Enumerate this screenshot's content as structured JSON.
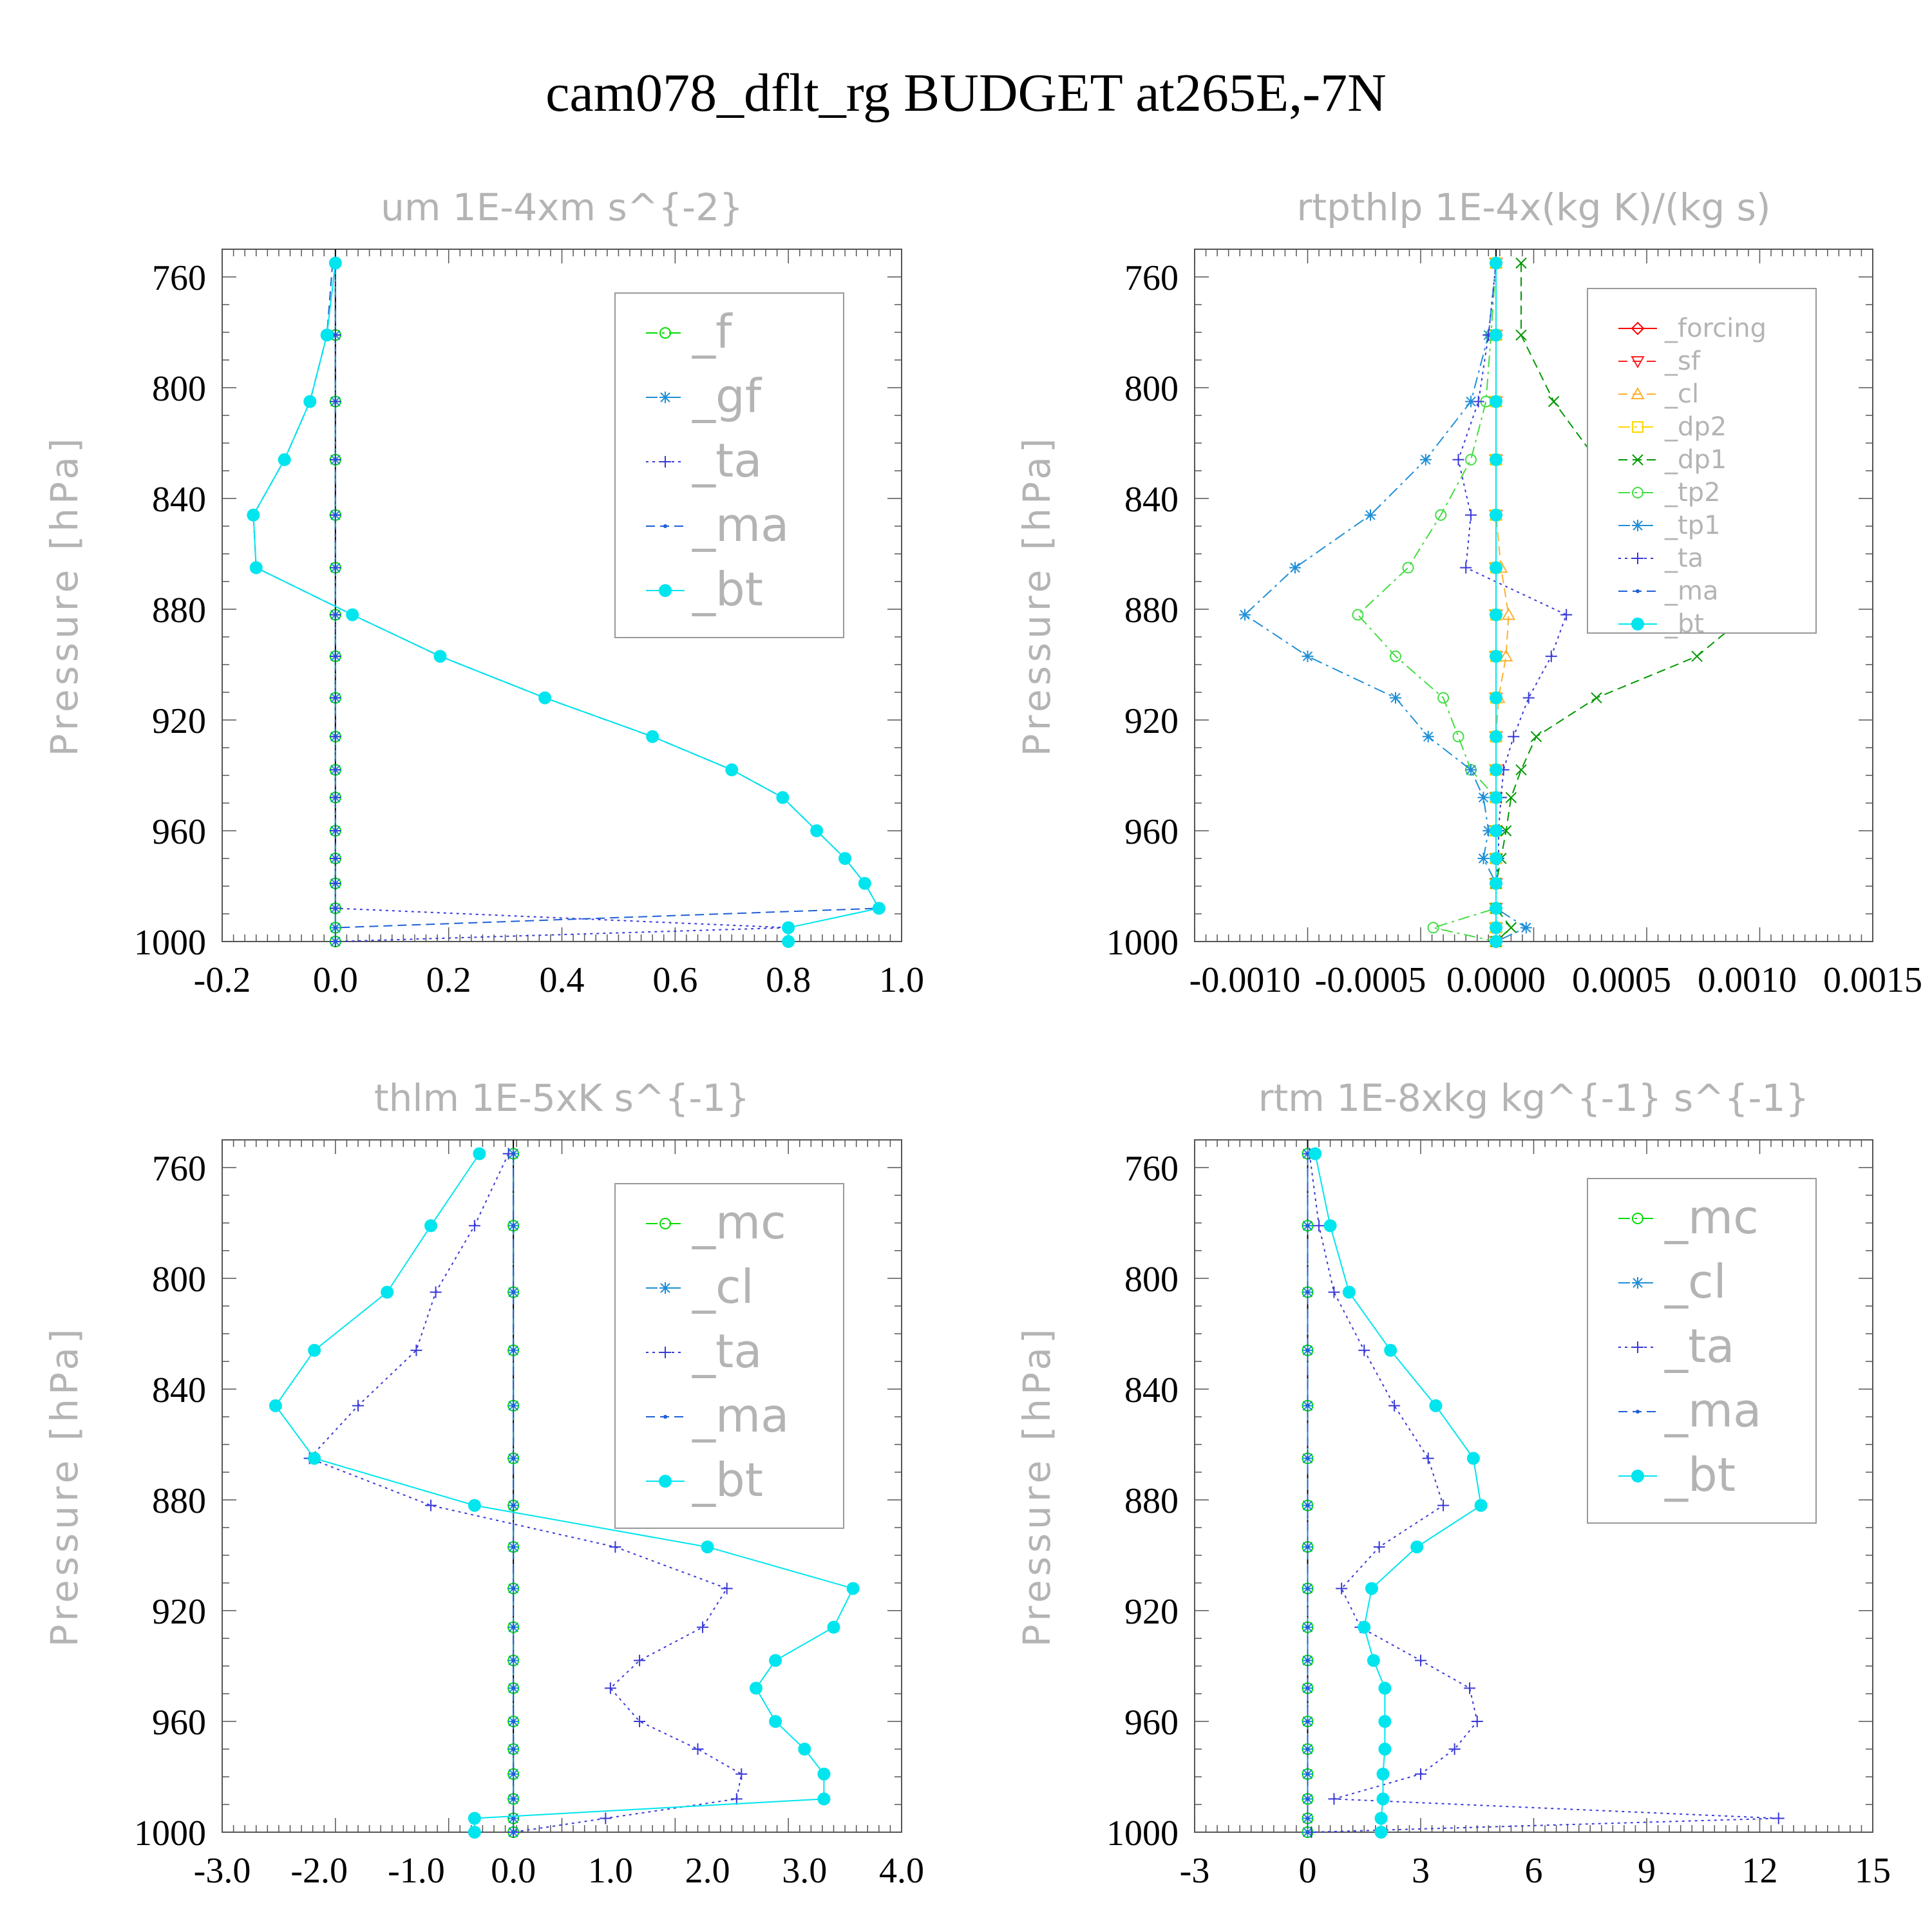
{
  "figure_title": "cam078_dflt_rg  BUDGET at265E,-7N",
  "chart_data": [
    {
      "type": "line",
      "title": "um   1E-4xm s^{-2}",
      "ylabel": "Pressure [hPa]",
      "xlim": [
        -0.2,
        1.0
      ],
      "ylim": [
        1000,
        750
      ],
      "xticks": [
        "-0.2",
        "0.0",
        "0.2",
        "0.4",
        "0.6",
        "0.8",
        "1.0"
      ],
      "yticks": [
        "760",
        "800",
        "840",
        "880",
        "920",
        "960",
        "1000"
      ],
      "legend_placement": "top-right",
      "levels": [
        755,
        781,
        805,
        826,
        846,
        865,
        882,
        897,
        912,
        926,
        938,
        948,
        960,
        970,
        979,
        988,
        995,
        1000
      ],
      "series": [
        {
          "name": "_f",
          "color": "#00dd00",
          "style": "dashdot",
          "marker": "circle",
          "values": [
            0,
            0,
            0,
            0,
            0,
            0,
            0,
            0,
            0,
            0,
            0,
            0,
            0,
            0,
            0,
            0,
            0,
            0
          ]
        },
        {
          "name": "_gf",
          "color": "#1f8fd6",
          "style": "dashdot",
          "marker": "asterisk",
          "values": [
            0,
            0,
            0,
            0,
            0,
            0,
            0,
            0,
            0,
            0,
            0,
            0,
            0,
            0,
            0,
            0,
            0,
            0
          ]
        },
        {
          "name": "_ta",
          "color": "#3a3ad8",
          "style": "dotted",
          "marker": "plus",
          "values": [
            0,
            0,
            0,
            0,
            0,
            0,
            0,
            0,
            0,
            0,
            0,
            0,
            0,
            0,
            0,
            0,
            0.8,
            0
          ]
        },
        {
          "name": "_ma",
          "color": "#1f5fd6",
          "style": "dashed",
          "marker": "dot",
          "values": [
            -0.005,
            -0.015,
            -0.045,
            -0.09,
            -0.145,
            -0.14,
            0.03,
            0.185,
            0.37,
            0.56,
            0.7,
            0.79,
            0.85,
            0.9,
            0.935,
            0.96,
            0,
            0
          ]
        },
        {
          "name": "_bt",
          "color": "#00e5ee",
          "style": "solid",
          "marker": "bigdot",
          "values": [
            0,
            -0.015,
            -0.045,
            -0.09,
            -0.145,
            -0.14,
            0.03,
            0.185,
            0.37,
            0.56,
            0.7,
            0.79,
            0.85,
            0.9,
            0.935,
            0.96,
            0.8,
            0.8
          ]
        }
      ]
    },
    {
      "type": "line",
      "title": "rtpthlp   1E-4x(kg K)/(kg s)",
      "ylabel": "Pressure [hPa]",
      "xlim": [
        -0.0012,
        0.0015
      ],
      "ylim": [
        1000,
        750
      ],
      "xticks": [
        "-0.0010",
        "-0.0005",
        "0.0000",
        "0.0005",
        "0.0010",
        "0.0015"
      ],
      "yticks": [
        "760",
        "800",
        "840",
        "880",
        "920",
        "960",
        "1000"
      ],
      "legend_placement": "top-right",
      "levels": [
        755,
        781,
        805,
        826,
        846,
        865,
        882,
        897,
        912,
        926,
        938,
        948,
        960,
        970,
        979,
        988,
        995,
        1000
      ],
      "series": [
        {
          "name": "_forcing",
          "color": "#ff0000",
          "style": "solid",
          "marker": "diamond",
          "values": [
            0,
            0,
            0,
            0,
            0,
            0,
            0,
            0,
            0,
            0,
            0,
            0,
            0,
            0,
            0,
            0,
            0,
            0
          ]
        },
        {
          "name": "_sf",
          "color": "#ff2020",
          "style": "dashed",
          "marker": "tri-down",
          "values": [
            0,
            0,
            0,
            0,
            0,
            0,
            0,
            0,
            0,
            0,
            0,
            0,
            0,
            0,
            0,
            0,
            0,
            0
          ]
        },
        {
          "name": "_cl",
          "color": "#ffb030",
          "style": "dashed",
          "marker": "tri-up",
          "values": [
            0,
            0,
            0,
            0,
            0,
            2e-05,
            5e-05,
            4e-05,
            1e-05,
            0,
            0,
            0,
            0,
            0,
            0,
            0,
            0,
            0
          ]
        },
        {
          "name": "_dp2",
          "color": "#ffd700",
          "style": "dashdot",
          "marker": "square",
          "values": [
            0,
            0,
            0,
            0,
            0,
            0,
            0,
            0,
            0,
            0,
            0,
            0,
            0,
            0,
            0,
            0,
            0,
            0
          ]
        },
        {
          "name": "_dp1",
          "color": "#009900",
          "style": "dashed",
          "marker": "x",
          "values": [
            0.0001,
            0.0001,
            0.00023,
            0.0004,
            0.00065,
            0.00092,
            0.001,
            0.0008,
            0.0004,
            0.00016,
            0.0001,
            6e-05,
            4e-05,
            2e-05,
            0,
            0,
            6e-05,
            0
          ]
        },
        {
          "name": "_tp2",
          "color": "#44dd44",
          "style": "dashdot",
          "marker": "circle",
          "values": [
            0,
            -2e-05,
            -4e-05,
            -0.0001,
            -0.00022,
            -0.00035,
            -0.00055,
            -0.0004,
            -0.00021,
            -0.00015,
            -0.0001,
            0,
            0,
            0,
            0,
            0,
            -0.00025,
            0
          ]
        },
        {
          "name": "_tp1",
          "color": "#1f8fd6",
          "style": "dashdot",
          "marker": "asterisk",
          "values": [
            0,
            -3e-05,
            -0.0001,
            -0.00028,
            -0.0005,
            -0.0008,
            -0.001,
            -0.00075,
            -0.0004,
            -0.00027,
            -0.0001,
            -5e-05,
            -3e-05,
            -5e-05,
            0,
            0,
            0.00012,
            0
          ]
        },
        {
          "name": "_ta",
          "color": "#3a3ad8",
          "style": "dotted",
          "marker": "plus",
          "values": [
            0,
            -3e-05,
            -7e-05,
            -0.00015,
            -0.0001,
            -0.00012,
            0.00028,
            0.00022,
            0.00013,
            7e-05,
            3e-05,
            2e-05,
            1e-05,
            1e-05,
            0,
            0,
            0,
            0
          ]
        },
        {
          "name": "_ma",
          "color": "#1f5fd6",
          "style": "dashed",
          "marker": "dot",
          "values": [
            0,
            0,
            0,
            0,
            0,
            0,
            0,
            0,
            0,
            0,
            0,
            0,
            0,
            0,
            0,
            0,
            0,
            0
          ]
        },
        {
          "name": "_bt",
          "color": "#00e5ee",
          "style": "solid",
          "marker": "bigdot",
          "values": [
            0,
            0,
            0,
            0,
            0,
            0,
            0,
            0,
            0,
            0,
            0,
            0,
            0,
            0,
            0,
            0,
            0,
            0
          ]
        }
      ]
    },
    {
      "type": "line",
      "title": "thlm   1E-5xK s^{-1}",
      "ylabel": "Pressure [hPa]",
      "xlim": [
        -3.0,
        4.0
      ],
      "ylim": [
        1000,
        750
      ],
      "xticks": [
        "-3.0",
        "-2.0",
        "-1.0",
        "0.0",
        "1.0",
        "2.0",
        "3.0",
        "4.0"
      ],
      "yticks": [
        "760",
        "800",
        "840",
        "880",
        "920",
        "960",
        "1000"
      ],
      "legend_placement": "top-right",
      "levels": [
        755,
        781,
        805,
        826,
        846,
        865,
        882,
        897,
        912,
        926,
        938,
        948,
        960,
        970,
        979,
        988,
        995,
        1000
      ],
      "series": [
        {
          "name": "_mc",
          "color": "#00dd00",
          "style": "dashdot",
          "marker": "circle",
          "values": [
            0,
            0,
            0,
            0,
            0,
            0,
            0,
            0,
            0,
            0,
            0,
            0,
            0,
            0,
            0,
            0,
            0,
            0
          ]
        },
        {
          "name": "_cl",
          "color": "#1f8fd6",
          "style": "dashdot",
          "marker": "asterisk",
          "values": [
            0,
            0,
            0,
            0,
            0,
            0,
            0,
            0,
            0,
            0,
            0,
            0,
            0,
            0,
            0,
            0,
            0,
            0
          ]
        },
        {
          "name": "_ta",
          "color": "#3a3ad8",
          "style": "dotted",
          "marker": "plus",
          "values": [
            -0.05,
            -0.4,
            -0.8,
            -1.0,
            -1.6,
            -2.1,
            -0.85,
            1.05,
            2.2,
            1.95,
            1.3,
            1.0,
            1.3,
            1.9,
            2.35,
            2.3,
            0.95,
            0
          ]
        },
        {
          "name": "_ma",
          "color": "#1f5fd6",
          "style": "dashed",
          "marker": "dot",
          "values": [
            0,
            0,
            0,
            0,
            0,
            0,
            0,
            0,
            0,
            0,
            0,
            0,
            0,
            0,
            0,
            0,
            0,
            0
          ]
        },
        {
          "name": "_bt",
          "color": "#00e5ee",
          "style": "solid",
          "marker": "bigdot",
          "values": [
            -0.35,
            -0.85,
            -1.3,
            -2.05,
            -2.45,
            -2.05,
            -0.4,
            2.0,
            3.5,
            3.3,
            2.7,
            2.5,
            2.7,
            3.0,
            3.2,
            3.2,
            -0.4,
            -0.4
          ]
        }
      ]
    },
    {
      "type": "line",
      "title": "rtm   1E-8xkg kg^{-1} s^{-1}",
      "ylabel": "Pressure [hPa]",
      "xlim": [
        -3,
        15
      ],
      "ylim": [
        1000,
        750
      ],
      "xticks": [
        "-3",
        "0",
        "3",
        "6",
        "9",
        "12",
        "15"
      ],
      "yticks": [
        "760",
        "800",
        "840",
        "880",
        "920",
        "960",
        "1000"
      ],
      "legend_placement": "top-right",
      "levels": [
        755,
        781,
        805,
        826,
        846,
        865,
        882,
        897,
        912,
        926,
        938,
        948,
        960,
        970,
        979,
        988,
        995,
        1000
      ],
      "series": [
        {
          "name": "_mc",
          "color": "#00dd00",
          "style": "dashdot",
          "marker": "circle",
          "values": [
            0,
            0,
            0,
            0,
            0,
            0,
            0,
            0,
            0,
            0,
            0,
            0,
            0,
            0,
            0,
            0,
            0,
            0
          ]
        },
        {
          "name": "_cl",
          "color": "#1f8fd6",
          "style": "dashdot",
          "marker": "asterisk",
          "values": [
            0,
            0,
            0,
            0,
            0,
            0,
            0,
            0,
            0,
            0,
            0,
            0,
            0,
            0,
            0,
            0,
            0,
            0
          ]
        },
        {
          "name": "_ta",
          "color": "#3a3ad8",
          "style": "dotted",
          "marker": "plus",
          "values": [
            0.05,
            0.3,
            0.7,
            1.5,
            2.3,
            3.2,
            3.6,
            1.9,
            0.9,
            1.4,
            3.0,
            4.3,
            4.5,
            3.9,
            3.0,
            0.7,
            12.5,
            0.1
          ]
        },
        {
          "name": "_ma",
          "color": "#1f5fd6",
          "style": "dashed",
          "marker": "dot",
          "values": [
            0,
            0,
            0,
            0,
            0,
            0,
            0,
            0,
            0,
            0,
            0,
            0,
            0,
            0,
            0,
            0,
            0,
            0
          ]
        },
        {
          "name": "_bt",
          "color": "#00e5ee",
          "style": "solid",
          "marker": "bigdot",
          "values": [
            0.2,
            0.6,
            1.1,
            2.2,
            3.4,
            4.4,
            4.6,
            2.9,
            1.7,
            1.5,
            1.75,
            2.05,
            2.05,
            2.05,
            2.0,
            2.0,
            1.95,
            1.95
          ]
        }
      ]
    }
  ]
}
